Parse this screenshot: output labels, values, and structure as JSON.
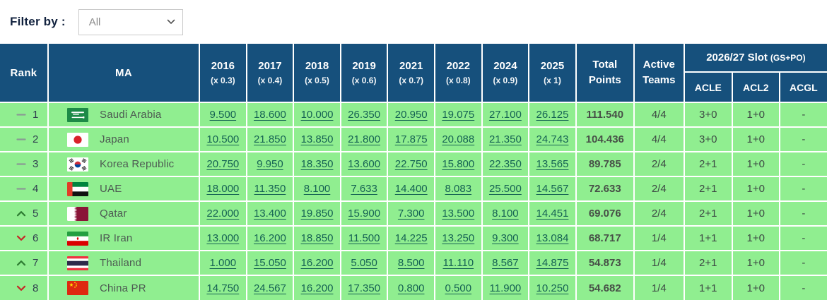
{
  "colors": {
    "header_bg": "#16507c",
    "row_bg": "#90ee90",
    "link": "#156253",
    "grid": "#ffffff",
    "up_arrow": "#2e7d32",
    "down_arrow": "#c62828",
    "same_dash": "#8a9a94",
    "label_text": "#13233f"
  },
  "filter": {
    "label": "Filter by :",
    "selected": "All"
  },
  "table": {
    "headers": {
      "rank": "Rank",
      "ma": "MA",
      "years": [
        {
          "year": "2016",
          "mult": "(x 0.3)"
        },
        {
          "year": "2017",
          "mult": "(x 0.4)"
        },
        {
          "year": "2018",
          "mult": "(x 0.5)"
        },
        {
          "year": "2019",
          "mult": "(x 0.6)"
        },
        {
          "year": "2021",
          "mult": "(x 0.7)"
        },
        {
          "year": "2022",
          "mult": "(x 0.8)"
        },
        {
          "year": "2024",
          "mult": "(x 0.9)"
        },
        {
          "year": "2025",
          "mult": "(x 1)"
        }
      ],
      "total_line1": "Total",
      "total_line2": "Points",
      "active_line1": "Active",
      "active_line2": "Teams",
      "slot_group": "2026/27 Slot",
      "slot_group_suffix": "(GS+PO)",
      "slots": [
        "ACLE",
        "ACL2",
        "ACGL"
      ]
    },
    "rows": [
      {
        "movement": "same",
        "rank": "1",
        "flag": "saudi-arabia",
        "ma": "Saudi Arabia",
        "points": [
          "9.500",
          "18.600",
          "10.000",
          "26.350",
          "20.950",
          "19.075",
          "27.100",
          "26.125"
        ],
        "total": "111.540",
        "active": "4/4",
        "slots": [
          "3+0",
          "1+0",
          "-"
        ]
      },
      {
        "movement": "same",
        "rank": "2",
        "flag": "japan",
        "ma": "Japan",
        "points": [
          "10.500",
          "21.850",
          "13.850",
          "21.800",
          "17.875",
          "20.088",
          "21.350",
          "24.743"
        ],
        "total": "104.436",
        "active": "4/4",
        "slots": [
          "3+0",
          "1+0",
          "-"
        ]
      },
      {
        "movement": "same",
        "rank": "3",
        "flag": "korea-republic",
        "ma": "Korea Republic",
        "points": [
          "20.750",
          "9.950",
          "18.350",
          "13.600",
          "22.750",
          "15.800",
          "22.350",
          "13.565"
        ],
        "total": "89.785",
        "active": "2/4",
        "slots": [
          "2+1",
          "1+0",
          "-"
        ]
      },
      {
        "movement": "same",
        "rank": "4",
        "flag": "uae",
        "ma": "UAE",
        "points": [
          "18.000",
          "11.350",
          "8.100",
          "7.633",
          "14.400",
          "8.083",
          "25.500",
          "14.567"
        ],
        "total": "72.633",
        "active": "2/4",
        "slots": [
          "2+1",
          "1+0",
          "-"
        ]
      },
      {
        "movement": "up",
        "rank": "5",
        "flag": "qatar",
        "ma": "Qatar",
        "points": [
          "22.000",
          "13.400",
          "19.850",
          "15.900",
          "7.300",
          "13.500",
          "8.100",
          "14.451"
        ],
        "total": "69.076",
        "active": "2/4",
        "slots": [
          "2+1",
          "1+0",
          "-"
        ]
      },
      {
        "movement": "down",
        "rank": "6",
        "flag": "iran",
        "ma": "IR Iran",
        "points": [
          "13.000",
          "16.200",
          "18.850",
          "11.500",
          "14.225",
          "13.250",
          "9.300",
          "13.084"
        ],
        "total": "68.717",
        "active": "1/4",
        "slots": [
          "1+1",
          "1+0",
          "-"
        ]
      },
      {
        "movement": "up",
        "rank": "7",
        "flag": "thailand",
        "ma": "Thailand",
        "points": [
          "1.000",
          "15.050",
          "16.200",
          "5.050",
          "8.500",
          "11.110",
          "8.567",
          "14.875"
        ],
        "total": "54.873",
        "active": "1/4",
        "slots": [
          "2+1",
          "1+0",
          "-"
        ]
      },
      {
        "movement": "down",
        "rank": "8",
        "flag": "china-pr",
        "ma": "China PR",
        "points": [
          "14.750",
          "24.567",
          "16.200",
          "17.350",
          "0.800",
          "0.500",
          "11.900",
          "10.250"
        ],
        "total": "54.682",
        "active": "1/4",
        "slots": [
          "1+1",
          "1+0",
          "-"
        ]
      }
    ]
  }
}
